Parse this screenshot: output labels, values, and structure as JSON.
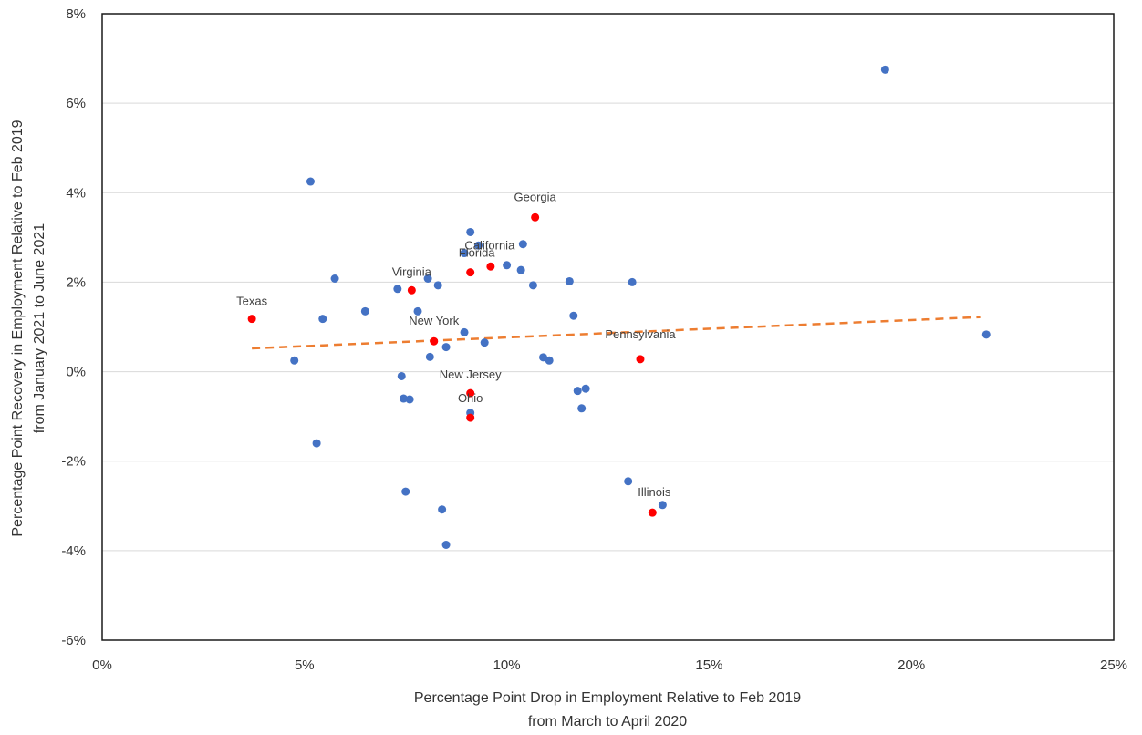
{
  "chart_data": {
    "type": "scatter",
    "title": "",
    "xlabel": [
      "Percentage Point Drop in Employment Relative to Feb 2019",
      "from March to April 2020"
    ],
    "ylabel": [
      "Percentage Point Recovery in Employment Relative to Feb 2019",
      "from January 2021 to June 2021"
    ],
    "xlim": [
      0,
      25
    ],
    "ylim": [
      -6,
      8
    ],
    "x_ticks": [
      "0%",
      "5%",
      "10%",
      "15%",
      "20%",
      "25%"
    ],
    "y_ticks": [
      "8%",
      "6%",
      "4%",
      "2%",
      "0%",
      "-2%",
      "-4%",
      "-6%"
    ],
    "grid": "horizontal",
    "legend": "none",
    "colors": {
      "other": "#4472c4",
      "highlight": "#ff0000",
      "trend": "#ed7d31"
    },
    "trendline": {
      "style": "dashed",
      "x": [
        3.7,
        21.7
      ],
      "y": [
        0.52,
        1.22
      ]
    },
    "highlighted": [
      {
        "label": "Texas",
        "x": 3.7,
        "y": 1.18
      },
      {
        "label": "Virginia",
        "x": 7.65,
        "y": 1.82
      },
      {
        "label": "Georgia",
        "x": 10.7,
        "y": 3.45
      },
      {
        "label": "Florida",
        "x": 9.1,
        "y": 2.22
      },
      {
        "label": "California",
        "x": 9.6,
        "y": 2.35
      },
      {
        "label": "New York",
        "x": 8.2,
        "y": 0.68
      },
      {
        "label": "New Jersey",
        "x": 9.1,
        "y": -0.48
      },
      {
        "label": "Ohio",
        "x": 9.1,
        "y": -1.03
      },
      {
        "label": "Pennsylvania",
        "x": 13.3,
        "y": 0.28
      },
      {
        "label": "Illinois",
        "x": 13.6,
        "y": -3.15
      }
    ],
    "others": [
      {
        "x": 4.75,
        "y": 0.25
      },
      {
        "x": 5.15,
        "y": 4.25
      },
      {
        "x": 5.3,
        "y": -1.6
      },
      {
        "x": 5.45,
        "y": 1.18
      },
      {
        "x": 5.75,
        "y": 2.08
      },
      {
        "x": 6.5,
        "y": 1.35
      },
      {
        "x": 7.3,
        "y": 1.85
      },
      {
        "x": 7.4,
        "y": -0.1
      },
      {
        "x": 7.45,
        "y": -0.6
      },
      {
        "x": 7.5,
        "y": -2.68
      },
      {
        "x": 7.6,
        "y": -0.62
      },
      {
        "x": 7.8,
        "y": 1.35
      },
      {
        "x": 8.05,
        "y": 2.08
      },
      {
        "x": 8.1,
        "y": 0.33
      },
      {
        "x": 8.3,
        "y": 1.93
      },
      {
        "x": 8.4,
        "y": -3.08
      },
      {
        "x": 8.5,
        "y": 0.55
      },
      {
        "x": 8.5,
        "y": -3.87
      },
      {
        "x": 8.95,
        "y": 2.65
      },
      {
        "x": 8.95,
        "y": 0.88
      },
      {
        "x": 9.1,
        "y": 3.12
      },
      {
        "x": 9.1,
        "y": -0.92
      },
      {
        "x": 9.3,
        "y": 2.82
      },
      {
        "x": 9.45,
        "y": 0.65
      },
      {
        "x": 10.0,
        "y": 2.38
      },
      {
        "x": 10.35,
        "y": 2.27
      },
      {
        "x": 10.4,
        "y": 2.85
      },
      {
        "x": 10.65,
        "y": 1.93
      },
      {
        "x": 10.9,
        "y": 0.32
      },
      {
        "x": 11.05,
        "y": 0.25
      },
      {
        "x": 11.55,
        "y": 2.02
      },
      {
        "x": 11.65,
        "y": 1.25
      },
      {
        "x": 11.75,
        "y": -0.43
      },
      {
        "x": 11.85,
        "y": -0.82
      },
      {
        "x": 11.95,
        "y": -0.38
      },
      {
        "x": 13.0,
        "y": -2.45
      },
      {
        "x": 13.1,
        "y": 2.0
      },
      {
        "x": 13.85,
        "y": -2.98
      },
      {
        "x": 19.35,
        "y": 6.75
      },
      {
        "x": 21.85,
        "y": 0.83
      }
    ]
  }
}
